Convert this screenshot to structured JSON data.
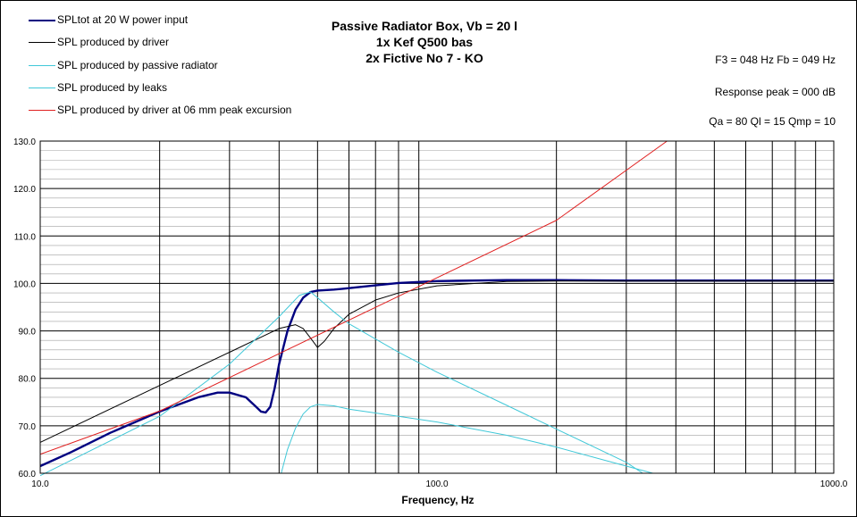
{
  "chart_data": {
    "type": "line",
    "title_lines": [
      "Passive Radiator Box, Vb = 20 l",
      "1x Kef Q500 bas",
      "2x Fictive No 7 - KO"
    ],
    "info": {
      "f3_fb": "F3 = 048  Hz  Fb = 049  Hz",
      "response_peak": "Response peak = 000  dB",
      "q_values": "Qa = 80  Ql = 15  Qmp = 10"
    },
    "xlabel": "Frequency, Hz",
    "ylabel": "",
    "x_scale": "log",
    "xlim": [
      10,
      1000
    ],
    "ylim": [
      60,
      130
    ],
    "y_ticks": [
      "60.0",
      "70.0",
      "80.0",
      "90.0",
      "100.0",
      "110.0",
      "120.0",
      "130.0"
    ],
    "x_ticks": [
      "10.0",
      "100.0",
      "1000.0"
    ],
    "grid": true,
    "legend_position": "top-left",
    "series": [
      {
        "name": "SPLtot at 20 W power input",
        "color": "#000080",
        "x": [
          10,
          12,
          15,
          20,
          25,
          28,
          30,
          33,
          35,
          36,
          37,
          38,
          39,
          40,
          42,
          44,
          46,
          48,
          50,
          55,
          60,
          70,
          80,
          100,
          150,
          200,
          300,
          500,
          1000
        ],
        "y": [
          61.5,
          64.5,
          68.5,
          73,
          76,
          77,
          77,
          76,
          74,
          73,
          72.8,
          74,
          78,
          83,
          90,
          94.5,
          97,
          98.2,
          98.5,
          98.7,
          99,
          99.6,
          100.1,
          100.5,
          100.7,
          100.7,
          100.6,
          100.6,
          100.6
        ]
      },
      {
        "name": "SPL produced by driver",
        "color": "#000000",
        "x": [
          10,
          20,
          30,
          40,
          44,
          46,
          48,
          50,
          52,
          55,
          60,
          70,
          80,
          100,
          150,
          200,
          300,
          500,
          1000
        ],
        "y": [
          66.5,
          78.5,
          85.5,
          90.5,
          91.3,
          90.5,
          88.5,
          86.5,
          87.8,
          90.5,
          93.5,
          96.5,
          98,
          99.5,
          100.4,
          100.5,
          100.5,
          100.5,
          100.5
        ]
      },
      {
        "name": "SPL produced by passive radiator",
        "color": "#40C8D8",
        "x": [
          10,
          20,
          30,
          40,
          45,
          48,
          50,
          55,
          60,
          80,
          100,
          150,
          200,
          300,
          330
        ],
        "y": [
          59.5,
          72,
          83,
          93,
          97.5,
          98.2,
          97,
          94,
          91.5,
          85.5,
          81.3,
          74.3,
          69.3,
          62.3,
          60
        ]
      },
      {
        "name": "SPL produced by leaks",
        "color": "#40C8D8",
        "x": [
          40.5,
          42,
          44,
          46,
          48,
          50,
          55,
          60,
          80,
          100,
          150,
          200,
          300,
          350
        ],
        "y": [
          60,
          65,
          69.5,
          72.5,
          74,
          74.5,
          74.2,
          73.5,
          72,
          70.8,
          68,
          65.5,
          61.5,
          60
        ]
      },
      {
        "name": "SPL produced by driver at 06 mm peak excursion",
        "color": "#E02020",
        "x": [
          10,
          20,
          40,
          80,
          100,
          200,
          380
        ],
        "y": [
          64,
          73.1,
          85.2,
          97.3,
          101.2,
          113.3,
          130
        ]
      }
    ]
  }
}
